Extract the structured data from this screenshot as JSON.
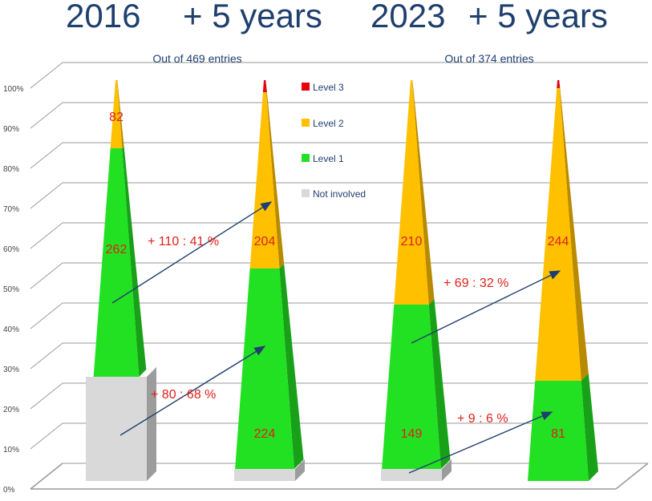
{
  "header": {
    "label_1": "2016",
    "label_2": "+ 5 years",
    "label_3": "2023",
    "label_4": "+ 5 years"
  },
  "chart_data": {
    "type": "bar",
    "stacked": true,
    "yticks": [
      "0%",
      "10%",
      "20%",
      "30%",
      "40%",
      "50%",
      "60%",
      "70%",
      "80%",
      "90%",
      "100%"
    ],
    "ylim": [
      0,
      100
    ],
    "grid": true,
    "legend_position": "center",
    "legend": [
      {
        "name": "Level 3",
        "color": "#e8000c"
      },
      {
        "name": "Level 2",
        "color": "#ffc000"
      },
      {
        "name": "Level 1",
        "color": "#22e022"
      },
      {
        "name": "Not involved",
        "color": "#d9d9d9"
      }
    ],
    "bars": [
      {
        "segments": [
          {
            "series": "Not involved",
            "percent": 26,
            "color": "#d9d9d9"
          },
          {
            "series": "Level 1",
            "percent": 57,
            "color": "#22e022"
          },
          {
            "series": "Level 2",
            "percent": 17,
            "color": "#ffc000"
          }
        ]
      },
      {
        "segments": [
          {
            "series": "Not involved",
            "percent": 3,
            "color": "#d9d9d9"
          },
          {
            "series": "Level 1",
            "percent": 50,
            "color": "#22e022"
          },
          {
            "series": "Level 2",
            "percent": 44,
            "color": "#ffc000"
          },
          {
            "series": "Level 3",
            "percent": 3,
            "color": "#e8000c"
          }
        ]
      },
      {
        "segments": [
          {
            "series": "Not involved",
            "percent": 3,
            "color": "#d9d9d9"
          },
          {
            "series": "Level 1",
            "percent": 41,
            "color": "#22e022"
          },
          {
            "series": "Level 2",
            "percent": 56,
            "color": "#ffc000"
          }
        ]
      },
      {
        "segments": [
          {
            "series": "Level 1",
            "percent": 25,
            "color": "#22e022"
          },
          {
            "series": "Level 2",
            "percent": 73,
            "color": "#ffc000"
          },
          {
            "series": "Level 3",
            "percent": 2,
            "color": "#e8000c"
          }
        ]
      }
    ],
    "count_labels": [
      {
        "bar": 0,
        "series": "Level 2",
        "text": "82"
      },
      {
        "bar": 0,
        "series": "Level 1",
        "text": "262"
      },
      {
        "bar": 1,
        "series": "Level 2",
        "text": "204"
      },
      {
        "bar": 1,
        "series": "Level 1",
        "text": "224"
      },
      {
        "bar": 2,
        "series": "Level 2",
        "text": "210"
      },
      {
        "bar": 2,
        "series": "Level 1",
        "text": "149"
      },
      {
        "bar": 3,
        "series": "Level 2",
        "text": "244"
      },
      {
        "bar": 3,
        "series": "Level 1",
        "text": "81"
      }
    ],
    "notes": [
      "Out of 469 entries",
      "Out of 374 entries"
    ],
    "annotations": [
      "+ 110 :  41 %",
      "+ 80 :  68 %",
      "+ 69 :  32 %",
      "+ 9 :  6 %"
    ]
  }
}
